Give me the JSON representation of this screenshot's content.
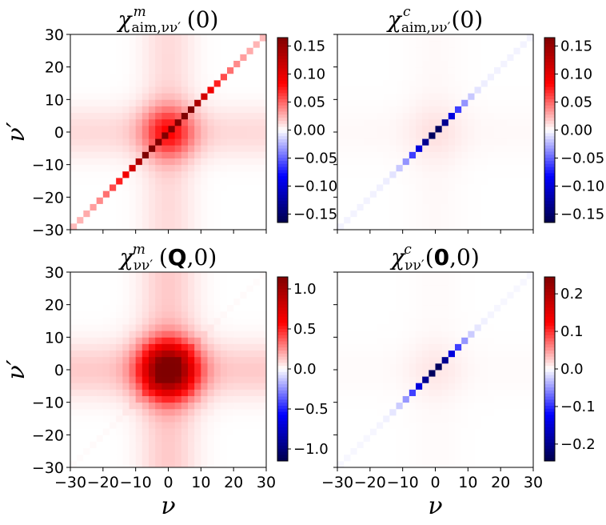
{
  "chart_data": [
    {
      "type": "heatmap",
      "title": "χ^m_{aim,νν'}(0)",
      "title_parts": {
        "symbol": "χ",
        "sup": "m",
        "sub": "aim,νν′",
        "arg": "(0)"
      },
      "xlabel": "",
      "ylabel": "ν′",
      "xlim": [
        -30,
        30
      ],
      "ylim": [
        -30,
        30
      ],
      "xticks": [
        -30,
        -20,
        -10,
        0,
        10,
        20,
        30
      ],
      "yticks": [
        -30,
        -20,
        -10,
        0,
        10,
        20,
        30
      ],
      "show_xtick_labels": false,
      "show_ytick_labels": true,
      "colorbar": {
        "min": -0.165,
        "max": 0.165,
        "ticks": [
          -0.15,
          -0.1,
          -0.05,
          0.0,
          0.05,
          0.1,
          0.15
        ],
        "tick_labels": [
          "−0.15",
          "−0.10",
          "−0.05",
          "0.00",
          "0.05",
          "0.10",
          "0.15"
        ],
        "colormap": "seismic"
      },
      "pattern": {
        "background_amplitude": 0.06,
        "background_width": 5.5,
        "cross_amplitude": 0.012,
        "diagonal_peak": 0.16,
        "diagonal_width": 10,
        "diagonal_floor": 0.02,
        "antidiagonal_peak": 0
      }
    },
    {
      "type": "heatmap",
      "title": "χ^c_{aim,νν'}(0)",
      "title_parts": {
        "symbol": "χ",
        "sup": "c",
        "sub": "aim,νν′",
        "arg": "(0)"
      },
      "xlabel": "",
      "ylabel": "",
      "xlim": [
        -30,
        30
      ],
      "ylim": [
        -30,
        30
      ],
      "xticks": [
        -30,
        -20,
        -10,
        0,
        10,
        20,
        30
      ],
      "yticks": [
        -30,
        -20,
        -10,
        0,
        10,
        20,
        30
      ],
      "show_xtick_labels": false,
      "show_ytick_labels": false,
      "colorbar": {
        "min": -0.165,
        "max": 0.165,
        "ticks": [
          -0.15,
          -0.1,
          -0.05,
          0.0,
          0.05,
          0.1,
          0.15
        ],
        "tick_labels": [
          "−0.15",
          "−0.10",
          "−0.05",
          "0.00",
          "0.05",
          "0.10",
          "0.15"
        ],
        "colormap": "seismic"
      },
      "pattern": {
        "background_amplitude": 0.006,
        "background_width": 6,
        "cross_amplitude": 0.002,
        "diagonal_peak": -0.165,
        "diagonal_width": 5,
        "diagonal_floor": 0.004,
        "antidiagonal_peak": 0
      }
    },
    {
      "type": "heatmap",
      "title": "χ^m_{νν'}(Q,0)",
      "title_parts": {
        "symbol": "χ",
        "sup": "m",
        "sub": "νν′",
        "arg_open": "(",
        "bold": "Q",
        "arg_close": ",0)"
      },
      "xlabel": "ν",
      "ylabel": "ν′",
      "xlim": [
        -30,
        30
      ],
      "ylim": [
        -30,
        30
      ],
      "xticks": [
        -30,
        -20,
        -10,
        0,
        10,
        20,
        30
      ],
      "yticks": [
        -30,
        -20,
        -10,
        0,
        10,
        20,
        30
      ],
      "show_xtick_labels": true,
      "show_ytick_labels": true,
      "colorbar": {
        "min": -1.15,
        "max": 1.15,
        "ticks": [
          -1.0,
          -0.5,
          0.0,
          0.5,
          1.0
        ],
        "tick_labels": [
          "−1.0",
          "−0.5",
          "0.0",
          "0.5",
          "1.0"
        ],
        "colormap": "seismic"
      },
      "pattern": {
        "background_amplitude": 1.05,
        "background_width": 6,
        "cross_amplitude": 0.12,
        "diagonal_peak": 0.1,
        "diagonal_width": 6,
        "diagonal_floor": 0.01,
        "antidiagonal_peak": 0.05
      }
    },
    {
      "type": "heatmap",
      "title": "χ^c_{νν'}(0,0)",
      "title_parts": {
        "symbol": "χ",
        "sup": "c",
        "sub": "νν′",
        "arg_open": "(",
        "bold": "0",
        "arg_close": ",0)"
      },
      "xlabel": "ν",
      "ylabel": "",
      "xlim": [
        -30,
        30
      ],
      "ylim": [
        -30,
        30
      ],
      "xticks": [
        -30,
        -20,
        -10,
        0,
        10,
        20,
        30
      ],
      "yticks": [
        -30,
        -20,
        -10,
        0,
        10,
        20,
        30
      ],
      "show_xtick_labels": true,
      "show_ytick_labels": false,
      "colorbar": {
        "min": -0.245,
        "max": 0.245,
        "ticks": [
          -0.2,
          -0.1,
          0.0,
          0.1,
          0.2
        ],
        "tick_labels": [
          "−0.2",
          "−0.1",
          "0.0",
          "0.1",
          "0.2"
        ],
        "colormap": "seismic"
      },
      "pattern": {
        "background_amplitude": 0.008,
        "background_width": 6,
        "cross_amplitude": 0.002,
        "diagonal_peak": -0.245,
        "diagonal_width": 5,
        "diagonal_floor": 0.004,
        "antidiagonal_peak": 0
      }
    }
  ]
}
